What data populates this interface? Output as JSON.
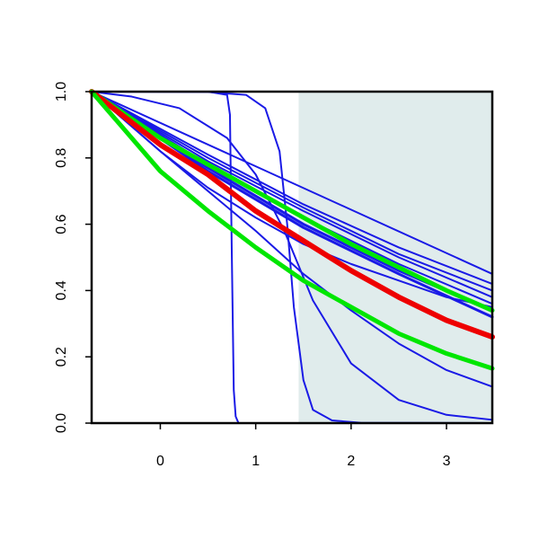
{
  "chart_data": {
    "type": "line",
    "title": "",
    "xlabel": "",
    "ylabel": "",
    "xlim": [
      -0.72,
      3.48
    ],
    "ylim": [
      0.0,
      1.0
    ],
    "x_ticks": [
      0,
      1,
      2,
      3
    ],
    "y_ticks": [
      0.0,
      0.2,
      0.4,
      0.6,
      0.8,
      1.0
    ],
    "x_tick_labels": [
      "0",
      "1",
      "2",
      "3"
    ],
    "y_tick_labels": [
      "0.0",
      "0.2",
      "0.4",
      "0.6",
      "0.8",
      "1.0"
    ],
    "grid": false,
    "legend": "none",
    "shaded_region": {
      "x": [
        1.45,
        3.48
      ],
      "y": [
        0.0,
        1.0
      ],
      "color": "#e0ecec"
    },
    "series": [
      {
        "color": "#1a1ae6",
        "width": 2,
        "x": [
          -0.72,
          3.48
        ],
        "y": [
          1.0,
          0.45
        ]
      },
      {
        "color": "#1a1ae6",
        "width": 2,
        "x": [
          -0.72,
          0.5,
          1.5,
          2.5,
          3.48
        ],
        "y": [
          1.0,
          0.81,
          0.66,
          0.53,
          0.42
        ]
      },
      {
        "color": "#1a1ae6",
        "width": 2,
        "x": [
          -0.72,
          0.5,
          1.5,
          2.5,
          3.48
        ],
        "y": [
          1.0,
          0.8,
          0.65,
          0.51,
          0.4
        ]
      },
      {
        "color": "#1a1ae6",
        "width": 2,
        "x": [
          -0.72,
          0.5,
          1.5,
          2.5,
          3.48
        ],
        "y": [
          1.0,
          0.79,
          0.64,
          0.5,
          0.38
        ]
      },
      {
        "color": "#1a1ae6",
        "width": 2,
        "x": [
          -0.72,
          0.5,
          1.5,
          2.5,
          3.48
        ],
        "y": [
          1.0,
          0.78,
          0.62,
          0.48,
          0.36
        ]
      },
      {
        "color": "#1a1ae6",
        "width": 3,
        "x": [
          -0.72,
          0.5,
          1.5,
          2.5,
          3.48
        ],
        "y": [
          1.0,
          0.77,
          0.6,
          0.46,
          0.34
        ]
      },
      {
        "color": "#1a1ae6",
        "width": 3,
        "x": [
          -0.72,
          0.5,
          1.5,
          2.5,
          3.48
        ],
        "y": [
          1.0,
          0.76,
          0.59,
          0.45,
          0.32
        ]
      },
      {
        "color": "#1a1ae6",
        "width": 2,
        "x": [
          -0.72,
          0.0,
          0.5,
          1.0,
          1.5,
          2.0,
          2.5,
          3.0,
          3.48
        ],
        "y": [
          1.0,
          0.82,
          0.7,
          0.58,
          0.45,
          0.34,
          0.24,
          0.16,
          0.11
        ]
      },
      {
        "color": "#1a1ae6",
        "width": 2,
        "x": [
          -0.72,
          -0.3,
          0.2,
          0.7,
          1.0,
          1.3,
          1.6,
          2.0,
          2.5,
          3.0,
          3.48
        ],
        "y": [
          1.0,
          0.985,
          0.95,
          0.86,
          0.75,
          0.58,
          0.37,
          0.18,
          0.07,
          0.025,
          0.01
        ]
      },
      {
        "color": "#1a1ae6",
        "width": 2,
        "x": [
          -0.72,
          0.5,
          0.9,
          1.1,
          1.25,
          1.33,
          1.4,
          1.5,
          1.6,
          1.8,
          2.1,
          3.48
        ],
        "y": [
          1.0,
          0.999,
          0.99,
          0.95,
          0.82,
          0.6,
          0.35,
          0.13,
          0.04,
          0.008,
          0.001,
          0.0
        ]
      },
      {
        "color": "#1a1ae6",
        "width": 2,
        "x": [
          -0.72,
          0.5,
          0.7,
          0.73,
          0.75,
          0.77,
          0.79,
          0.82,
          3.48
        ],
        "y": [
          1.0,
          1.0,
          0.99,
          0.93,
          0.5,
          0.1,
          0.02,
          0.0,
          0.0
        ]
      },
      {
        "color": "#1a1ae6",
        "width": 2,
        "x": [
          -0.72,
          0.0,
          0.5,
          1.0,
          1.5,
          2.0,
          2.5,
          3.0,
          3.48
        ],
        "y": [
          1.0,
          0.82,
          0.71,
          0.62,
          0.54,
          0.48,
          0.43,
          0.38,
          0.35
        ]
      },
      {
        "color": "#00e600",
        "width": 5,
        "x": [
          -0.72,
          0.0,
          0.5,
          1.0,
          1.5,
          2.0,
          2.5,
          3.0,
          3.48
        ],
        "y": [
          1.0,
          0.86,
          0.78,
          0.7,
          0.62,
          0.54,
          0.47,
          0.4,
          0.34
        ]
      },
      {
        "color": "#ee0000",
        "width": 6,
        "x": [
          -0.72,
          0.0,
          0.5,
          1.0,
          1.5,
          2.0,
          2.5,
          3.0,
          3.48
        ],
        "y": [
          1.0,
          0.84,
          0.75,
          0.64,
          0.55,
          0.46,
          0.38,
          0.31,
          0.26
        ]
      },
      {
        "color": "#00e600",
        "width": 5,
        "x": [
          -0.72,
          0.0,
          0.5,
          1.0,
          1.5,
          2.0,
          2.5,
          3.0,
          3.48
        ],
        "y": [
          1.0,
          0.76,
          0.64,
          0.53,
          0.43,
          0.35,
          0.27,
          0.21,
          0.165
        ]
      }
    ]
  }
}
